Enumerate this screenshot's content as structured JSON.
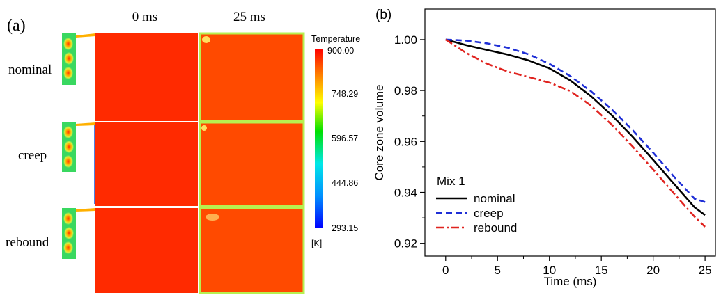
{
  "panel_a": {
    "label": "(a)",
    "columns": [
      "0 ms",
      "25 ms"
    ],
    "rows": [
      "nominal",
      "creep",
      "rebound"
    ],
    "colorbar": {
      "title": "Temperature",
      "ticks": [
        "900.00",
        "748.29",
        "596.57",
        "444.86",
        "293.15"
      ],
      "unit": "[K]",
      "max": 900.0,
      "min": 293.15
    },
    "colors": {
      "hot": "#ff2a00",
      "warm": "#ff4a00",
      "edge": "#b7f050",
      "piston": "#39d860"
    }
  },
  "panel_b": {
    "label": "(b)"
  },
  "chart_data": {
    "type": "line",
    "title": "",
    "xlabel": "Time (ms)",
    "ylabel": "Core zone volume",
    "xlim": [
      -2,
      26
    ],
    "ylim": [
      0.915,
      1.012
    ],
    "xticks": [
      0,
      5,
      10,
      15,
      20,
      25
    ],
    "yticks": [
      0.92,
      0.94,
      0.96,
      0.98,
      1.0
    ],
    "ytick_labels": [
      "0.92",
      "0.94",
      "0.96",
      "0.98",
      "1.00"
    ],
    "legend_title": "Mix 1",
    "legend_position": "bottom-left",
    "grid": false,
    "series": [
      {
        "name": "nominal",
        "color": "#000000",
        "dash": "solid",
        "x": [
          0,
          2,
          4,
          6,
          8,
          10,
          12,
          14,
          16,
          18,
          20,
          22,
          24,
          25
        ],
        "y": [
          1.0,
          0.9978,
          0.9959,
          0.9941,
          0.9918,
          0.9887,
          0.984,
          0.9778,
          0.9703,
          0.9619,
          0.9528,
          0.9434,
          0.9341,
          0.9311
        ]
      },
      {
        "name": "creep",
        "color": "#1f2fd6",
        "dash": "dashed",
        "x": [
          0,
          2,
          4,
          6,
          8,
          10,
          12,
          14,
          16,
          18,
          20,
          22,
          24,
          25
        ],
        "y": [
          1.0,
          0.9996,
          0.9985,
          0.9968,
          0.9942,
          0.9905,
          0.9857,
          0.9797,
          0.9726,
          0.9645,
          0.9556,
          0.9462,
          0.9375,
          0.9362
        ]
      },
      {
        "name": "rebound",
        "color": "#e0231f",
        "dash": "dashdot",
        "x": [
          0,
          2,
          4,
          6,
          8,
          10,
          12,
          14,
          16,
          18,
          20,
          22,
          24,
          25
        ],
        "y": [
          1.0,
          0.9947,
          0.9905,
          0.9874,
          0.9853,
          0.9831,
          0.9798,
          0.9741,
          0.9666,
          0.9581,
          0.949,
          0.9396,
          0.9304,
          0.9265
        ]
      }
    ]
  }
}
